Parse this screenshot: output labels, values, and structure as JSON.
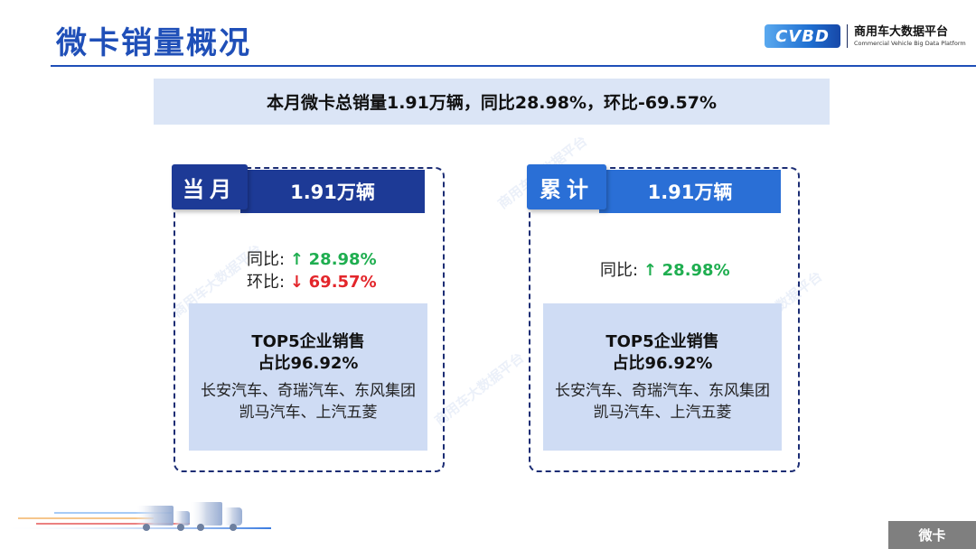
{
  "header": {
    "title": "微卡销量概况",
    "logo": {
      "mark": "CVBD",
      "name_cn": "商用车大数据平台",
      "name_en": "Commercial Vehicle Big Data Platform"
    }
  },
  "summary": {
    "text": "本月微卡总销量1.91万辆，同比28.98%，环比-69.57%"
  },
  "cards": {
    "monthly": {
      "label": "当月",
      "value": "1.91万辆",
      "yoy_label": "同比:",
      "yoy_arrow": "↑",
      "yoy_value": "28.98%",
      "mom_label": "环比:",
      "mom_arrow": "↓",
      "mom_value": "69.57%",
      "top5_title_line1": "TOP5企业销售",
      "top5_title_line2": "占比96.92%",
      "top5_companies_line1": "长安汽车、奇瑞汽车、东风集团",
      "top5_companies_line2": "凯马汽车、上汽五菱"
    },
    "cumulative": {
      "label": "累计",
      "value": "1.91万辆",
      "yoy_label": "同比:",
      "yoy_arrow": "↑",
      "yoy_value": "28.98%",
      "top5_title_line1": "TOP5企业销售",
      "top5_title_line2": "占比96.92%",
      "top5_companies_line1": "长安汽车、奇瑞汽车、东风集团",
      "top5_companies_line2": "凯马汽车、上汽五菱"
    }
  },
  "footer": {
    "tag": "微卡"
  },
  "watermark": {
    "text": "商用车大数据平台"
  },
  "colors": {
    "brand_blue": "#1f4fb8",
    "navy": "#1d3a96",
    "accent_blue": "#2a6fd6",
    "up_green": "#1fae50",
    "down_red": "#e3262b"
  }
}
